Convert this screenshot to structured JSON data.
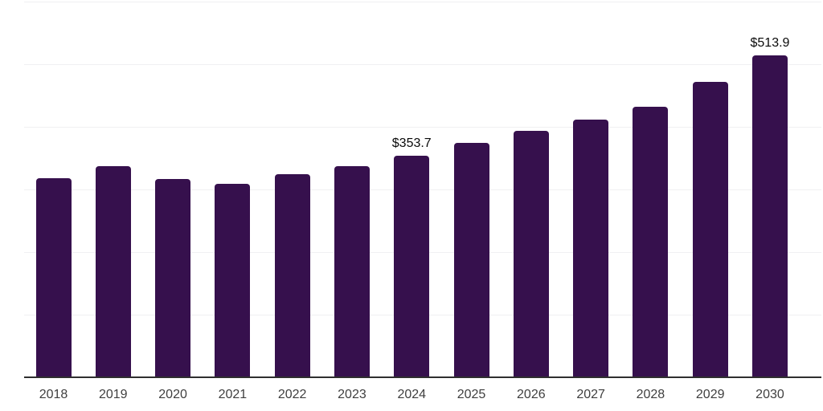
{
  "chart_data": {
    "type": "bar",
    "title": "",
    "xlabel": "",
    "ylabel": "",
    "categories": [
      "2018",
      "2019",
      "2020",
      "2021",
      "2022",
      "2023",
      "2024",
      "2025",
      "2026",
      "2027",
      "2028",
      "2029",
      "2030"
    ],
    "values": [
      318,
      337,
      317,
      309,
      324,
      337,
      353.7,
      374,
      394,
      412,
      432,
      472,
      513.9
    ],
    "point_labels": [
      "",
      "",
      "",
      "",
      "",
      "",
      "$353.7",
      "",
      "",
      "",
      "",
      "",
      "$513.9"
    ],
    "ylim": [
      0,
      600
    ],
    "grid_step": 100,
    "grid": true,
    "legend": false,
    "colors": {
      "bar": "#36104d",
      "gridline": "#f0f0f2",
      "axis_line": "#2f2f2f",
      "tick_label": "#3f3f3f",
      "value_label": "#0a0a0a",
      "background": "#ffffff"
    }
  }
}
